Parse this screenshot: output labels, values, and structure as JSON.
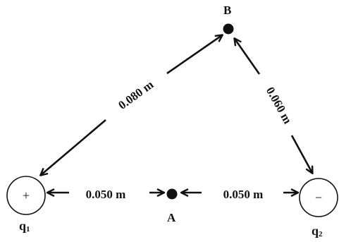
{
  "colors": {
    "ink": "#111111",
    "background": "#ffffff"
  },
  "points": {
    "a": {
      "label": "A"
    },
    "b": {
      "label": "B"
    }
  },
  "charges": {
    "q1": {
      "name_main": "q",
      "name_sub": "1",
      "sign": "+"
    },
    "q2": {
      "name_main": "q",
      "name_sub": "2",
      "sign": "−"
    }
  },
  "distances": {
    "q1_to_b": "0.080 m",
    "q2_to_b": "0.060 m",
    "q1_to_a": "0.050 m",
    "a_to_q2": "0.050 m"
  }
}
